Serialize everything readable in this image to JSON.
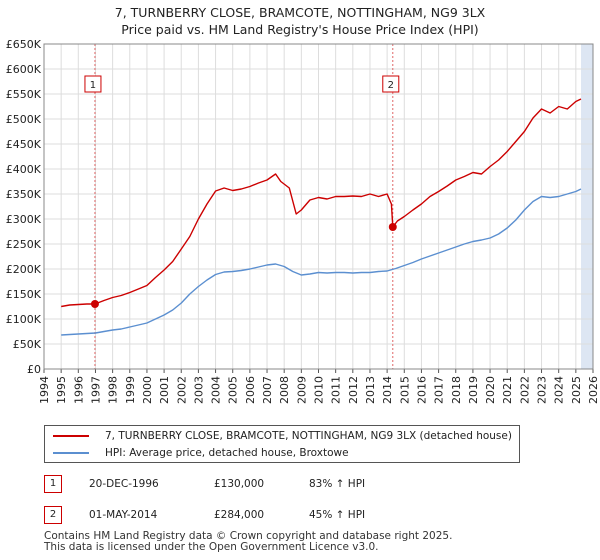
{
  "title": {
    "line1": "7, TURNBERRY CLOSE, BRAMCOTE, NOTTINGHAM, NG9 3LX",
    "line2": "Price paid vs. HM Land Registry's House Price Index (HPI)"
  },
  "chart_data": {
    "type": "line",
    "title": "7, TURNBERRY CLOSE, BRAMCOTE, NOTTINGHAM, NG9 3LX",
    "subtitle": "Price paid vs. HM Land Registry's House Price Index (HPI)",
    "xlabel": "",
    "ylabel": "",
    "xlim": [
      1994,
      2026
    ],
    "ylim": [
      0,
      650000
    ],
    "yticks": [
      {
        "value": 0,
        "label": "£0"
      },
      {
        "value": 50000,
        "label": "£50K"
      },
      {
        "value": 100000,
        "label": "£100K"
      },
      {
        "value": 150000,
        "label": "£150K"
      },
      {
        "value": 200000,
        "label": "£200K"
      },
      {
        "value": 250000,
        "label": "£250K"
      },
      {
        "value": 300000,
        "label": "£300K"
      },
      {
        "value": 350000,
        "label": "£350K"
      },
      {
        "value": 400000,
        "label": "£400K"
      },
      {
        "value": 450000,
        "label": "£450K"
      },
      {
        "value": 500000,
        "label": "£500K"
      },
      {
        "value": 550000,
        "label": "£550K"
      },
      {
        "value": 600000,
        "label": "£600K"
      },
      {
        "value": 650000,
        "label": "£650K"
      }
    ],
    "xticks": [
      "1994",
      "1995",
      "1996",
      "1997",
      "1998",
      "1999",
      "2000",
      "2001",
      "2002",
      "2003",
      "2004",
      "2005",
      "2006",
      "2007",
      "2008",
      "2009",
      "2010",
      "2011",
      "2012",
      "2013",
      "2014",
      "2015",
      "2016",
      "2017",
      "2018",
      "2019",
      "2020",
      "2021",
      "2022",
      "2023",
      "2024",
      "2025",
      "2026"
    ],
    "grid": true,
    "colors": {
      "property": "#cc0000",
      "hpi": "#5b8fd0",
      "shade": "#dde6f3",
      "grid": "#dddddd",
      "vline": "#e06666"
    },
    "shaded_region": [
      2025.3,
      2026
    ],
    "series": [
      {
        "name": "7, TURNBERRY CLOSE, BRAMCOTE, NOTTINGHAM, NG9 3LX (detached house)",
        "color": "#cc0000",
        "x": [
          1995.0,
          1995.5,
          1996.0,
          1996.5,
          1996.97,
          1997.5,
          1998.0,
          1998.5,
          1999.0,
          1999.5,
          2000.0,
          2000.5,
          2001.0,
          2001.5,
          2002.0,
          2002.5,
          2003.0,
          2003.5,
          2004.0,
          2004.5,
          2005.0,
          2005.5,
          2006.0,
          2006.5,
          2007.0,
          2007.5,
          2007.8,
          2008.3,
          2008.7,
          2009.0,
          2009.5,
          2010.0,
          2010.5,
          2011.0,
          2011.5,
          2012.0,
          2012.5,
          2013.0,
          2013.5,
          2014.0,
          2014.25,
          2014.33,
          2014.6,
          2015.0,
          2015.5,
          2016.0,
          2016.5,
          2017.0,
          2017.5,
          2018.0,
          2018.5,
          2019.0,
          2019.5,
          2020.0,
          2020.5,
          2021.0,
          2021.5,
          2022.0,
          2022.5,
          2023.0,
          2023.5,
          2024.0,
          2024.5,
          2025.0,
          2025.3
        ],
        "values": [
          125000,
          128000,
          129000,
          130000,
          130000,
          137000,
          143000,
          147000,
          153000,
          160000,
          167000,
          183000,
          198000,
          215000,
          240000,
          265000,
          300000,
          330000,
          356000,
          362000,
          357000,
          360000,
          365000,
          372000,
          378000,
          390000,
          375000,
          362000,
          310000,
          318000,
          338000,
          343000,
          340000,
          345000,
          345000,
          346000,
          345000,
          350000,
          345000,
          350000,
          330000,
          284000,
          296000,
          305000,
          318000,
          330000,
          345000,
          355000,
          366000,
          378000,
          385000,
          393000,
          390000,
          405000,
          418000,
          435000,
          455000,
          475000,
          502000,
          520000,
          512000,
          525000,
          520000,
          535000,
          540000
        ]
      },
      {
        "name": "HPI: Average price, detached house, Broxtowe",
        "color": "#5b8fd0",
        "x": [
          1995.0,
          1995.5,
          1996.0,
          1996.5,
          1997.0,
          1997.5,
          1998.0,
          1998.5,
          1999.0,
          1999.5,
          2000.0,
          2000.5,
          2001.0,
          2001.5,
          2002.0,
          2002.5,
          2003.0,
          2003.5,
          2004.0,
          2004.5,
          2005.0,
          2005.5,
          2006.0,
          2006.5,
          2007.0,
          2007.5,
          2008.0,
          2008.5,
          2009.0,
          2009.5,
          2010.0,
          2010.5,
          2011.0,
          2011.5,
          2012.0,
          2012.5,
          2013.0,
          2013.5,
          2014.0,
          2014.5,
          2015.0,
          2015.5,
          2016.0,
          2016.5,
          2017.0,
          2017.5,
          2018.0,
          2018.5,
          2019.0,
          2019.5,
          2020.0,
          2020.5,
          2021.0,
          2021.5,
          2022.0,
          2022.5,
          2023.0,
          2023.5,
          2024.0,
          2024.5,
          2025.0,
          2025.3
        ],
        "values": [
          68000,
          69000,
          70000,
          71000,
          72000,
          75000,
          78000,
          80000,
          84000,
          88000,
          92000,
          100000,
          108000,
          118000,
          132000,
          150000,
          165000,
          178000,
          189000,
          194000,
          195000,
          197000,
          200000,
          204000,
          208000,
          210000,
          205000,
          195000,
          188000,
          190000,
          193000,
          192000,
          193000,
          193000,
          192000,
          193000,
          193000,
          195000,
          196000,
          201000,
          207000,
          213000,
          220000,
          226000,
          232000,
          238000,
          244000,
          250000,
          255000,
          258000,
          262000,
          270000,
          282000,
          298000,
          318000,
          335000,
          345000,
          343000,
          345000,
          350000,
          355000,
          360000
        ]
      }
    ],
    "annotations": [
      {
        "id": "1",
        "x": 1996.97,
        "value": 130000
      },
      {
        "id": "2",
        "x": 2014.33,
        "value": 284000
      }
    ]
  },
  "legend": {
    "property": "7, TURNBERRY CLOSE, BRAMCOTE, NOTTINGHAM, NG9 3LX (detached house)",
    "hpi": "HPI: Average price, detached house, Broxtowe"
  },
  "transactions": [
    {
      "id": "1",
      "date": "20-DEC-1996",
      "price": "£130,000",
      "hpi": "83% ↑ HPI"
    },
    {
      "id": "2",
      "date": "01-MAY-2014",
      "price": "£284,000",
      "hpi": "45% ↑ HPI"
    }
  ],
  "footer": {
    "line1": "Contains HM Land Registry data © Crown copyright and database right 2025.",
    "line2": "This data is licensed under the Open Government Licence v3.0."
  }
}
